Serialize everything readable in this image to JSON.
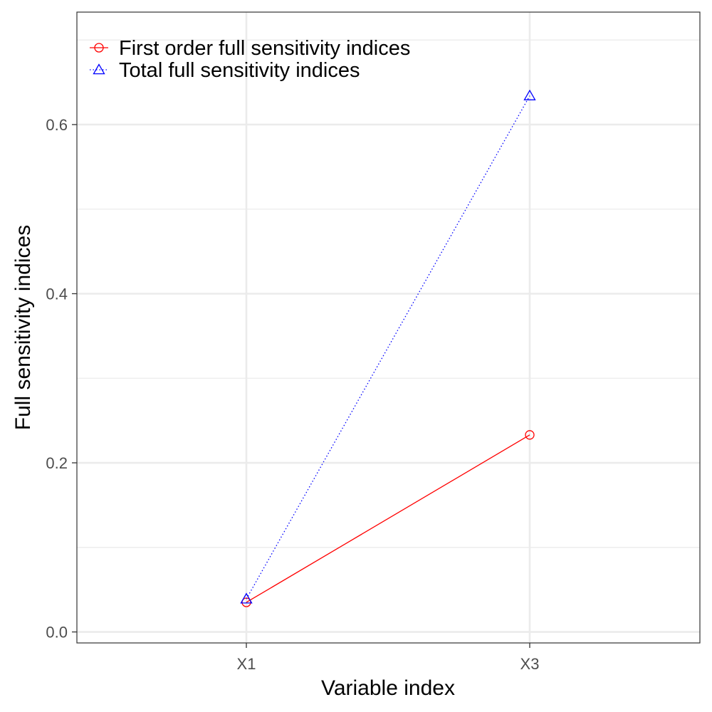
{
  "chart_data": {
    "type": "line",
    "xlabel": "Variable index",
    "ylabel": "Full sensitivity indices",
    "categories": [
      "X1",
      "X3"
    ],
    "ylim": [
      -0.013,
      0.733
    ],
    "yticks": [
      0.0,
      0.2,
      0.4,
      0.6
    ],
    "ytick_labels": [
      "0.0",
      "0.2",
      "0.4",
      "0.6"
    ],
    "minor_yticks": [
      0.1,
      0.3,
      0.5,
      0.7
    ],
    "grid": true,
    "legend_position": "top-left",
    "series": [
      {
        "name": "First order full sensitivity indices",
        "values": [
          0.035,
          0.233
        ],
        "color": "#ff0000",
        "marker": "circle",
        "line_style": "solid"
      },
      {
        "name": "Total full sensitivity indices",
        "values": [
          0.039,
          0.634
        ],
        "color": "#0000ff",
        "marker": "triangle",
        "line_style": "dotted"
      }
    ]
  }
}
